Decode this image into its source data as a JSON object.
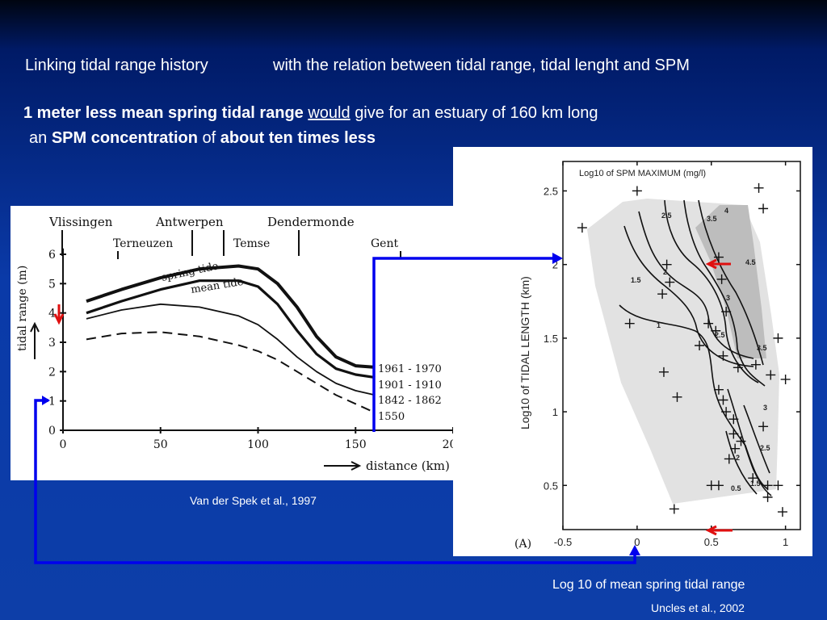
{
  "slide": {
    "title_part1": "Linking tidal range history",
    "title_part2": "with the relation between tidal range, tidal lenght and SPM",
    "line2": {
      "bold1": "1 meter less mean spring tidal range",
      "underlined": "would",
      "rest": "give for an estuary of 160 km long"
    },
    "line3": {
      "prefix": "an",
      "bold1": "SPM concentration",
      "mid": "of",
      "bold2": "about ten times less"
    }
  },
  "left_figure": {
    "places_top": [
      "Vlissingen",
      "Antwerpen",
      "Dendermonde"
    ],
    "places_bottom": [
      "Terneuzen",
      "Temse",
      "Gent"
    ],
    "ylabel": "tidal range (m)",
    "xlabel": "distance (km)",
    "curve_labels": [
      "spring tide",
      "mean tide"
    ],
    "legend": [
      "1961 - 1970",
      "1901 - 1910",
      "1842 - 1862",
      "1550"
    ],
    "caption": "Van der Spek et al., 1997"
  },
  "right_figure": {
    "title": "Log10 of SPM MAXIMUM (mg/l)",
    "ylabel": "Log10 of TIDAL LENGTH (km)",
    "panel_label": "(A)",
    "contour_labels": [
      "2.5",
      "3.5",
      "4",
      "2",
      "1.5",
      "1",
      "3",
      "2.5",
      "3.5",
      "4.5",
      "3",
      "2.5",
      "2",
      "1.5",
      "0.5"
    ],
    "caption": "Log 10 of mean spring tidal range",
    "credit": "Uncles et al., 2002"
  },
  "chart_data": [
    {
      "type": "line",
      "xlabel": "distance (km)",
      "ylabel": "tidal range (m)",
      "xlim": [
        0,
        200
      ],
      "ylim": [
        0,
        6
      ],
      "x_ticks": [
        0,
        50,
        100,
        150,
        200
      ],
      "y_ticks": [
        0,
        1,
        2,
        3,
        4,
        5,
        6
      ],
      "series": [
        {
          "name": "1961 - 1970",
          "x": [
            12,
            30,
            50,
            70,
            90,
            100,
            110,
            120,
            130,
            140,
            150,
            160
          ],
          "y": [
            4.4,
            4.8,
            5.2,
            5.5,
            5.6,
            5.5,
            5.0,
            4.2,
            3.2,
            2.5,
            2.2,
            2.15
          ]
        },
        {
          "name": "1901 - 1910",
          "x": [
            12,
            30,
            50,
            70,
            90,
            100,
            110,
            120,
            130,
            140,
            150,
            160
          ],
          "y": [
            4.0,
            4.4,
            4.8,
            5.1,
            5.1,
            4.9,
            4.3,
            3.4,
            2.6,
            2.1,
            1.9,
            1.8
          ]
        },
        {
          "name": "1842 - 1862",
          "x": [
            12,
            30,
            50,
            70,
            90,
            100,
            110,
            120,
            130,
            140,
            150,
            160
          ],
          "y": [
            3.8,
            4.1,
            4.3,
            4.2,
            3.9,
            3.6,
            3.1,
            2.5,
            2.0,
            1.6,
            1.35,
            1.2
          ]
        },
        {
          "name": "1550",
          "x": [
            12,
            30,
            50,
            70,
            90,
            100,
            110,
            120,
            130,
            140,
            150,
            160
          ],
          "y": [
            3.1,
            3.3,
            3.35,
            3.2,
            2.9,
            2.7,
            2.4,
            2.0,
            1.6,
            1.2,
            0.9,
            0.6
          ]
        }
      ]
    },
    {
      "type": "scatter",
      "title": "Log10 of SPM MAXIMUM (mg/l)",
      "ylabel": "Log10 of TIDAL LENGTH (km)",
      "xlim": [
        -0.5,
        1.1
      ],
      "ylim": [
        0.2,
        2.7
      ],
      "x_ticks": [
        -0.5,
        0,
        0.5,
        1
      ],
      "y_ticks": [
        0.5,
        1,
        1.5,
        2,
        2.5
      ],
      "points": [
        [
          -0.37,
          2.25
        ],
        [
          0.0,
          2.5
        ],
        [
          0.85,
          2.38
        ],
        [
          0.82,
          2.52
        ],
        [
          0.22,
          1.88
        ],
        [
          0.2,
          2.0
        ],
        [
          0.57,
          1.9
        ],
        [
          0.17,
          1.8
        ],
        [
          0.55,
          2.05
        ],
        [
          0.6,
          1.68
        ],
        [
          0.53,
          1.55
        ],
        [
          0.48,
          1.6
        ],
        [
          -0.05,
          1.6
        ],
        [
          0.42,
          1.45
        ],
        [
          0.58,
          1.38
        ],
        [
          0.68,
          1.3
        ],
        [
          0.8,
          1.32
        ],
        [
          0.9,
          1.25
        ],
        [
          0.95,
          1.5
        ],
        [
          0.18,
          1.27
        ],
        [
          0.27,
          1.1
        ],
        [
          0.55,
          1.15
        ],
        [
          0.58,
          1.08
        ],
        [
          0.6,
          1.0
        ],
        [
          0.65,
          0.95
        ],
        [
          0.65,
          0.85
        ],
        [
          0.7,
          0.8
        ],
        [
          0.66,
          0.75
        ],
        [
          0.62,
          0.68
        ],
        [
          0.85,
          0.9
        ],
        [
          0.78,
          0.55
        ],
        [
          0.88,
          0.5
        ],
        [
          0.5,
          0.5
        ],
        [
          0.55,
          0.5
        ],
        [
          0.25,
          0.34
        ],
        [
          0.98,
          0.32
        ],
        [
          0.88,
          0.42
        ],
        [
          0.95,
          0.5
        ],
        [
          1.0,
          1.22
        ]
      ]
    }
  ]
}
